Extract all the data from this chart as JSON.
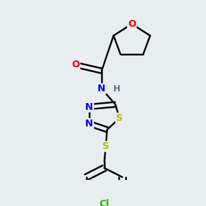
{
  "background_color": "#e8edf0",
  "bond_color": "#000000",
  "atom_colors": {
    "O": "#ff0000",
    "N": "#0000ee",
    "S": "#bbbb00",
    "Cl": "#22bb00",
    "C": "#000000",
    "H": "#607080"
  },
  "bond_width": 1.8,
  "font_size": 10,
  "fig_width": 3.0,
  "fig_height": 3.0,
  "dpi": 100
}
